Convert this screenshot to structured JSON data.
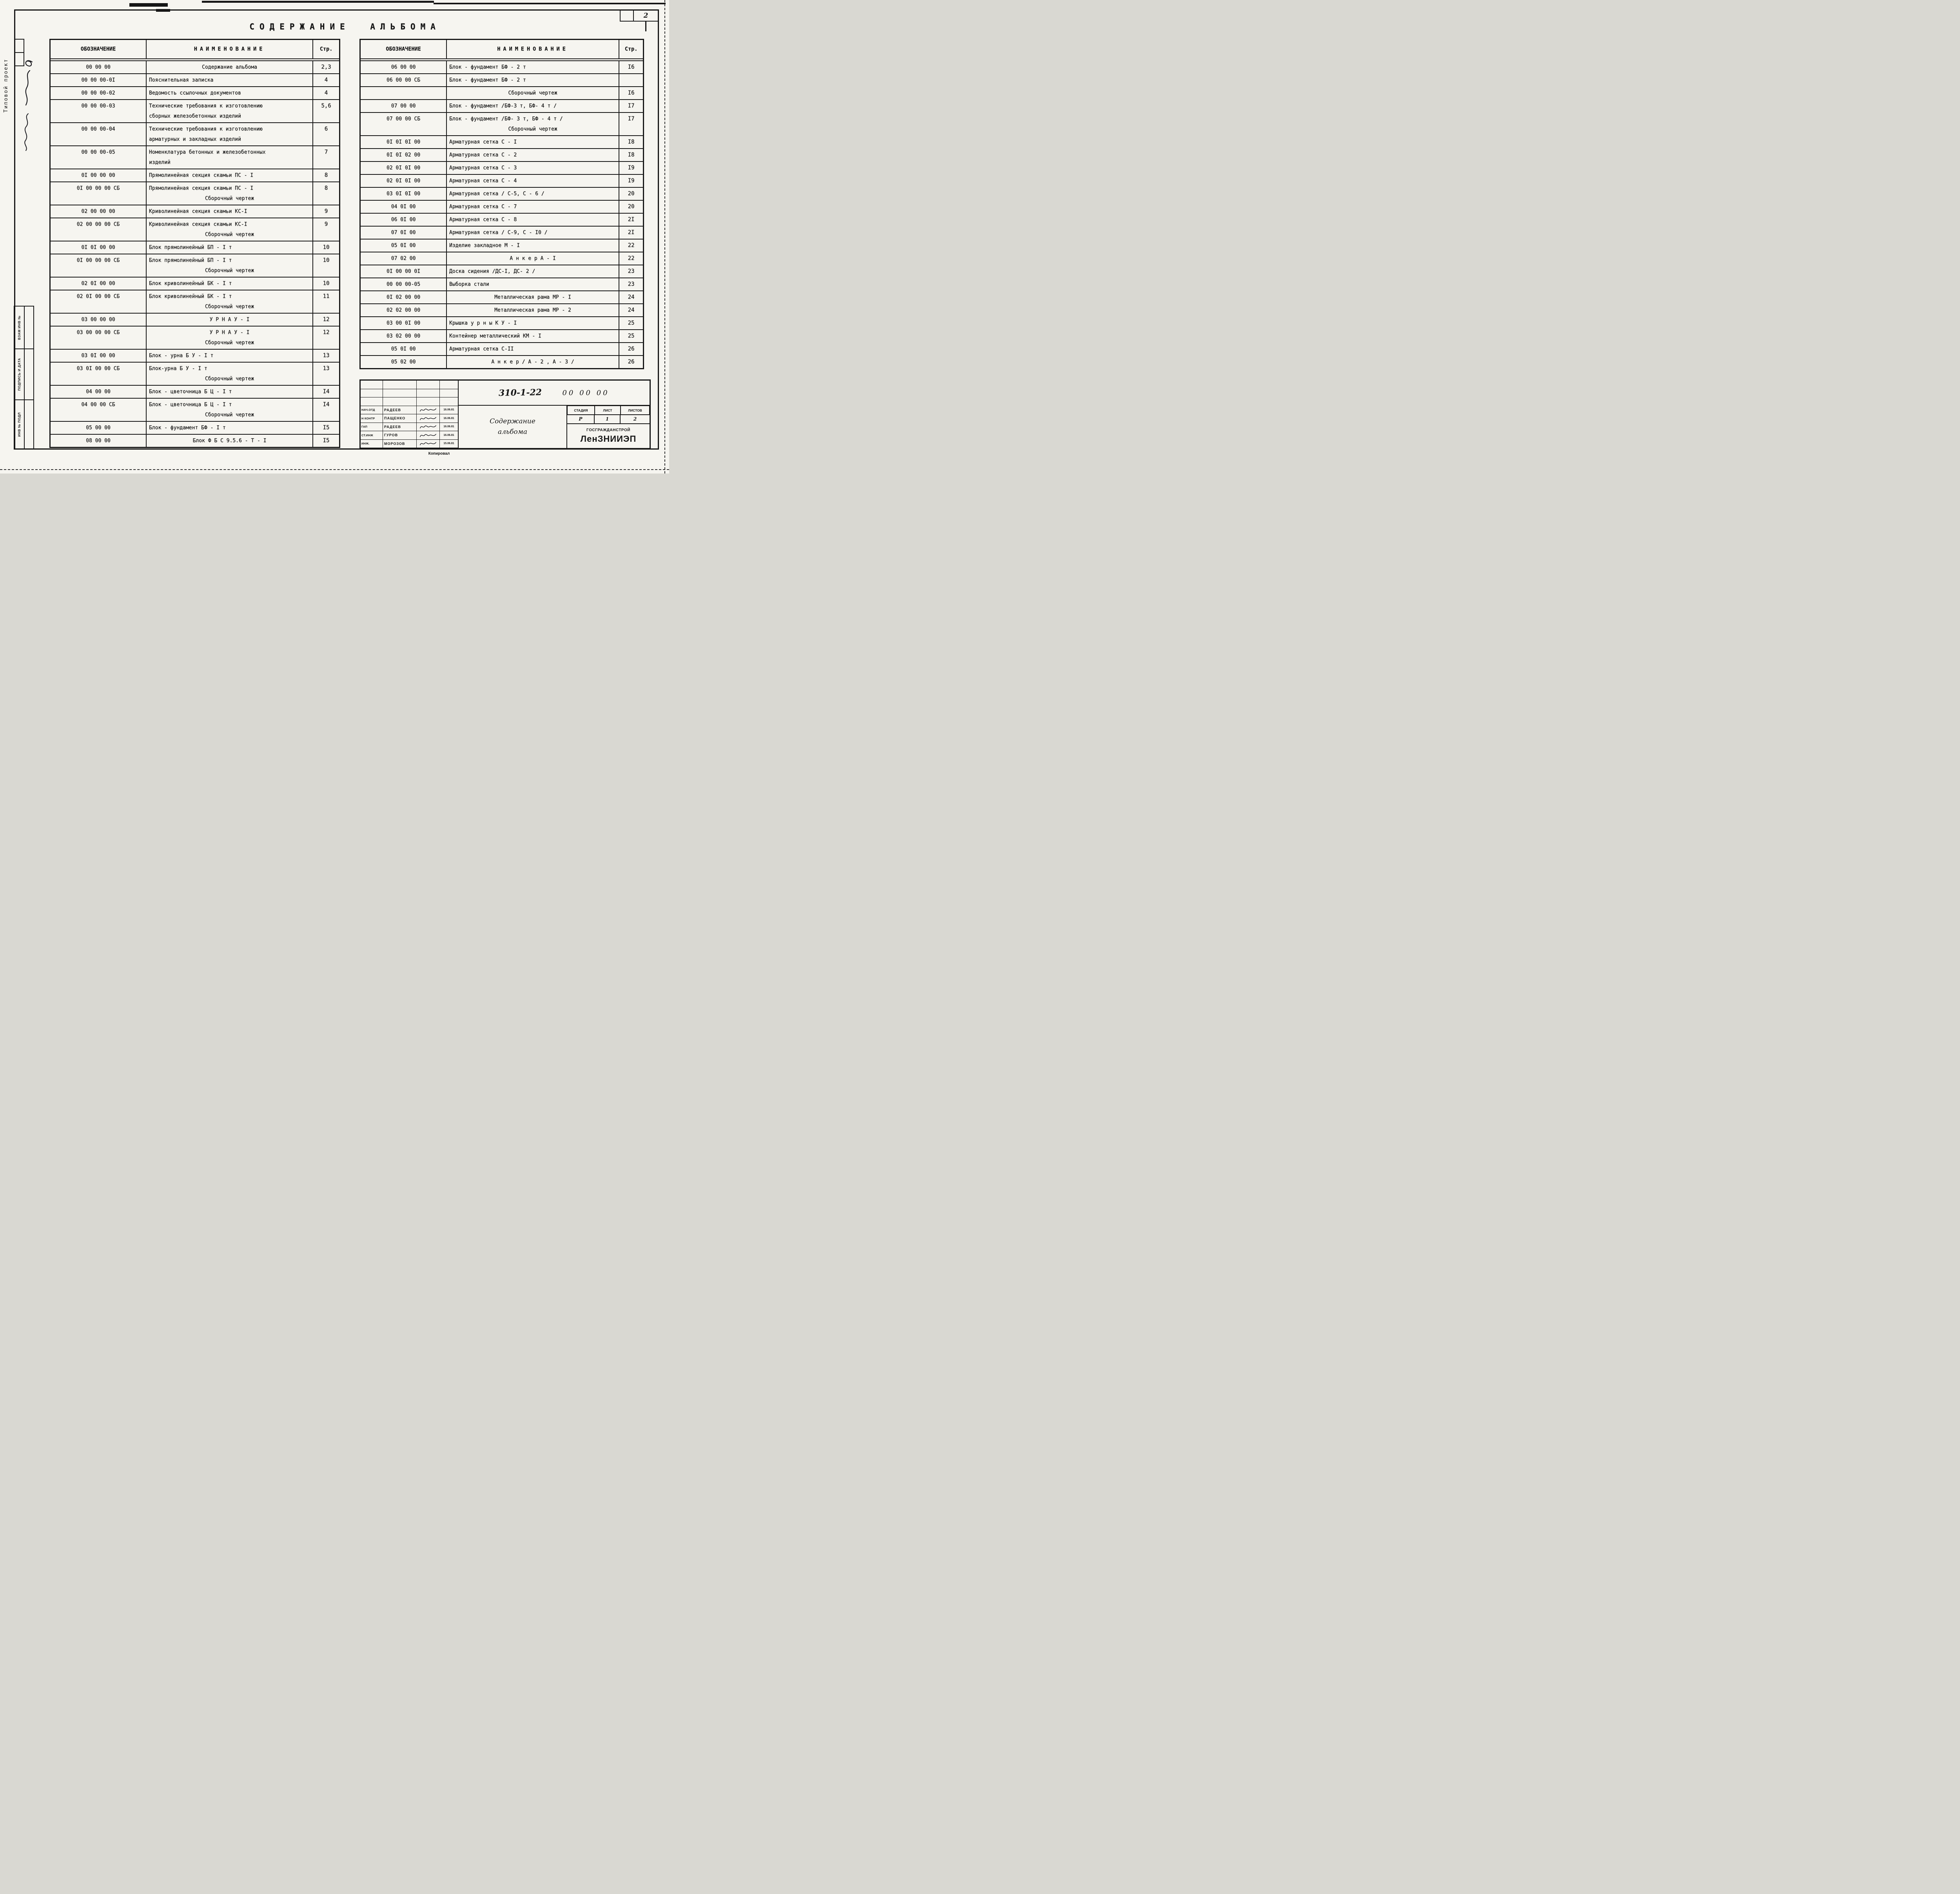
{
  "page": {
    "number": "2"
  },
  "main_title": "СОДЕРЖАНИЕ АЛЬБОМА",
  "margin": {
    "project_type": "Типовой проект",
    "stamps": [
      "ВЗАМ ИНВ №",
      "ПОДПИСЬ И ДАТА",
      "ИНВ № ПОДЛ"
    ],
    "copied_label": "Копировал"
  },
  "table_headers": {
    "code": "ОБОЗНАЧЕНИЕ",
    "name": "НАИМЕНОВАНИЕ",
    "page": "Стр."
  },
  "left_table": {
    "rows": [
      {
        "code": "00 00 00",
        "name": "Содержание  альбома",
        "page": "2,3",
        "center": true
      },
      {
        "code": "00 00 00-0I",
        "name": "Пояснительная записка",
        "page": "4"
      },
      {
        "code": "00 00 00-02",
        "name": "Ведомость ссылочных документов",
        "page": "4"
      },
      {
        "code": "00 00 00-03",
        "name": "Технические требования к изготовлению",
        "name2": "сборных железобетонных изделий",
        "page": "5,6",
        "cont": true
      },
      {
        "code": "00 00 00-04",
        "name": "Технические требования к изготовлению",
        "name2": "арматурных и закладных изделий",
        "page": "6",
        "cont": true
      },
      {
        "code": "00 00 00-05",
        "name": "Номенклатура бетонных и железобетонных",
        "name2": "изделий",
        "page": "7",
        "cont": true
      },
      {
        "code": "0I 00 00 00",
        "name": "Прямолинейная секция скамьи ПС - I",
        "page": "8"
      },
      {
        "code": "0I 00 00 00 СБ",
        "name": "Прямолинейная секция скамьи ПС - I",
        "name2": "Сборочный чертеж",
        "page": "8"
      },
      {
        "code": "02 00 00 00",
        "name": "Криволинейная секция скамьи КС-I",
        "page": "9"
      },
      {
        "code": "02 00 00 00 СБ",
        "name": "Криволинейная секция скамьи КС-I",
        "name2": "Сборочный чертеж",
        "page": "9"
      },
      {
        "code": "0I 0I 00 00",
        "name": "Блок прямолинейный БП - I т",
        "page": "10"
      },
      {
        "code": "0I 00 00 00 СБ",
        "name": "Блок прямолинейный БП - I т",
        "name2": "Сборочный чертеж",
        "page": "10"
      },
      {
        "code": "02 0I 00 00",
        "name": "Блок криволинейный БК - I т",
        "page": "10"
      },
      {
        "code": "02 0I 00 00 СБ",
        "name": "Блок криволинейный БК - I т",
        "name2": "Сборочный чертеж",
        "page": "11"
      },
      {
        "code": "03 00 00 00",
        "name": "У Р Н А  У - I",
        "page": "12",
        "center": true
      },
      {
        "code": "03 00 00 00 СБ",
        "name": "У Р Н А  У - I",
        "name2": "Сборочный чертеж",
        "page": "12",
        "center": true
      },
      {
        "code": "03 0I 00 00",
        "name": "Блок - урна  Б У - I т",
        "page": "13"
      },
      {
        "code": "03 0I 00 00 СБ",
        "name": "Блок-урна  Б У - I т",
        "name2": "Сборочный чертеж",
        "page": "13"
      },
      {
        "code": "04 00 00",
        "name": "Блок - цветочница  Б Ц - I т",
        "page": "I4"
      },
      {
        "code": "04 00 00 СБ",
        "name": "Блок - цветочница Б Ц - I т",
        "name2": "Сборочный чертеж",
        "page": "I4"
      },
      {
        "code": "05 00 00",
        "name": "Блок - фундамент  БФ - I т",
        "page": "I5"
      },
      {
        "code": "08 00 00",
        "name": "Блок  Ф Б С  9.5.6 - Т - I",
        "page": "I5",
        "center": true
      }
    ]
  },
  "right_table": {
    "rows": [
      {
        "code": "06 00 00",
        "name": "Блок - фундамент БФ - 2 т",
        "page": "I6"
      },
      {
        "code": "06 00 00 СБ",
        "name": "Блок - фундамент БФ - 2 т",
        "page": ""
      },
      {
        "code": "",
        "name": "Сборочный чертеж",
        "page": "I6",
        "center": true
      },
      {
        "code": "07 00 00",
        "name": "Блок - фундамент /БФ-3 т, БФ- 4 т /",
        "page": "I7"
      },
      {
        "code": "07 00 00 СБ",
        "name": "Блок - фундамент /БФ- 3 т, БФ - 4 т /",
        "name2": "Сборочный чертеж",
        "page": "I7"
      },
      {
        "code": "0I 0I 0I 00",
        "name": "Арматурная сетка  С - I",
        "page": "I8"
      },
      {
        "code": "0I 0I 02 00",
        "name": "Арматурная сетка  С - 2",
        "page": "I8"
      },
      {
        "code": "02 0I 0I 00",
        "name": "Арматурная сетка  С - 3",
        "page": "I9"
      },
      {
        "code": "02 0I 0I 00",
        "name": "Арматурная сетка  С - 4",
        "page": "I9"
      },
      {
        "code": "03 0I 0I 00",
        "name": "Арматурная сетка  / С-5, С - 6 /",
        "page": "20"
      },
      {
        "code": "04 0I 00",
        "name": "Арматурная сетка  С - 7",
        "page": "20"
      },
      {
        "code": "06 0I 00",
        "name": "Арматурная сетка  С - 8",
        "page": "2I"
      },
      {
        "code": "07 0I 00",
        "name": "Арматурная сетка  / С-9, С - I0 /",
        "page": "2I"
      },
      {
        "code": "05 0I 00",
        "name": "Изделие закладное  М - I",
        "page": "22"
      },
      {
        "code": "07 02 00",
        "name": "А н к е р   А - I",
        "page": "22",
        "center": true
      },
      {
        "code": "0I 00 00 0I",
        "name": "Доска сидения  /ДС-I, ДС- 2 /",
        "page": "23"
      },
      {
        "code": "00 00 00-05",
        "name": "Выборка  стали",
        "page": "23"
      },
      {
        "code": "0I 02 00 00",
        "name": "Металлическая рама  МР - I",
        "page": "24",
        "center": true
      },
      {
        "code": "02 02 00 00",
        "name": "Металлическая рама МР - 2",
        "page": "24",
        "center": true
      },
      {
        "code": "03 00 0I 00",
        "name": "Крышка  у р н ы   К У  -  I",
        "page": "25"
      },
      {
        "code": "03 02 00 00",
        "name": "Контейнер металлический КМ - I",
        "page": "25"
      },
      {
        "code": "05 0I 00",
        "name": "Арматурная сетка  С-II",
        "page": "26"
      },
      {
        "code": "05 02 00",
        "name": "А н к е р / А - 2 , А - 3 /",
        "page": "26",
        "center": true
      }
    ]
  },
  "title_block": {
    "project_code": "310-1-22",
    "doc_code": "00 00 00",
    "doc_title_line1": "Содержание",
    "doc_title_line2": "альбома",
    "stage_label": "СТАДИЯ",
    "sheet_label": "ЛИСТ",
    "sheets_label": "ЛИСТОВ",
    "stage": "Р",
    "sheet": "1",
    "sheets": "2",
    "org_line1": "ГОСГРАЖДАНСТРОЙ",
    "org_line2": "ЛенЗНИИЭП",
    "signatures": [
      {
        "role": "НАЧ.ОТД",
        "name": "РАДЕЕВ",
        "date": "16.06.81"
      },
      {
        "role": "Н КОНТР",
        "name": "ПАЩЕНКО",
        "date": "16.06.81"
      },
      {
        "role": "ГАП",
        "name": "РАДЕЕВ",
        "date": "16.06.81"
      },
      {
        "role": "СТ.ИНЖ",
        "name": "ГУРОВ",
        "date": "16.06.81"
      },
      {
        "role": "ИНЖ.",
        "name": "МОРОЗОВ",
        "date": "15.06.81"
      }
    ]
  }
}
